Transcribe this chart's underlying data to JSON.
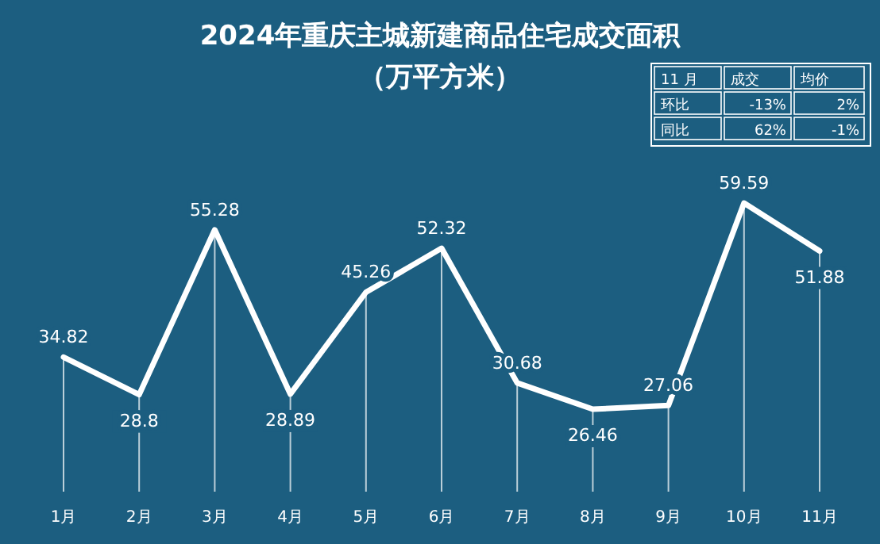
{
  "chart_data": {
    "type": "line",
    "title": "2024年重庆主城新建商品住宅成交面积",
    "subtitle": "（万平方米）",
    "categories": [
      "1月",
      "2月",
      "3月",
      "4月",
      "5月",
      "6月",
      "7月",
      "8月",
      "9月",
      "10月",
      "11月"
    ],
    "series": [
      {
        "color": "#ffffff",
        "values": [
          34.82,
          28.8,
          55.28,
          28.89,
          45.26,
          52.32,
          30.68,
          26.46,
          27.06,
          59.59,
          51.88
        ]
      }
    ],
    "data_labels": true,
    "grid": "x",
    "marker": "none",
    "line_style": "solid",
    "annotations": [
      "11 月",
      "成交",
      "均价",
      "环比",
      "-13%",
      "2%",
      "同比",
      "62%",
      "-1%"
    ]
  }
}
